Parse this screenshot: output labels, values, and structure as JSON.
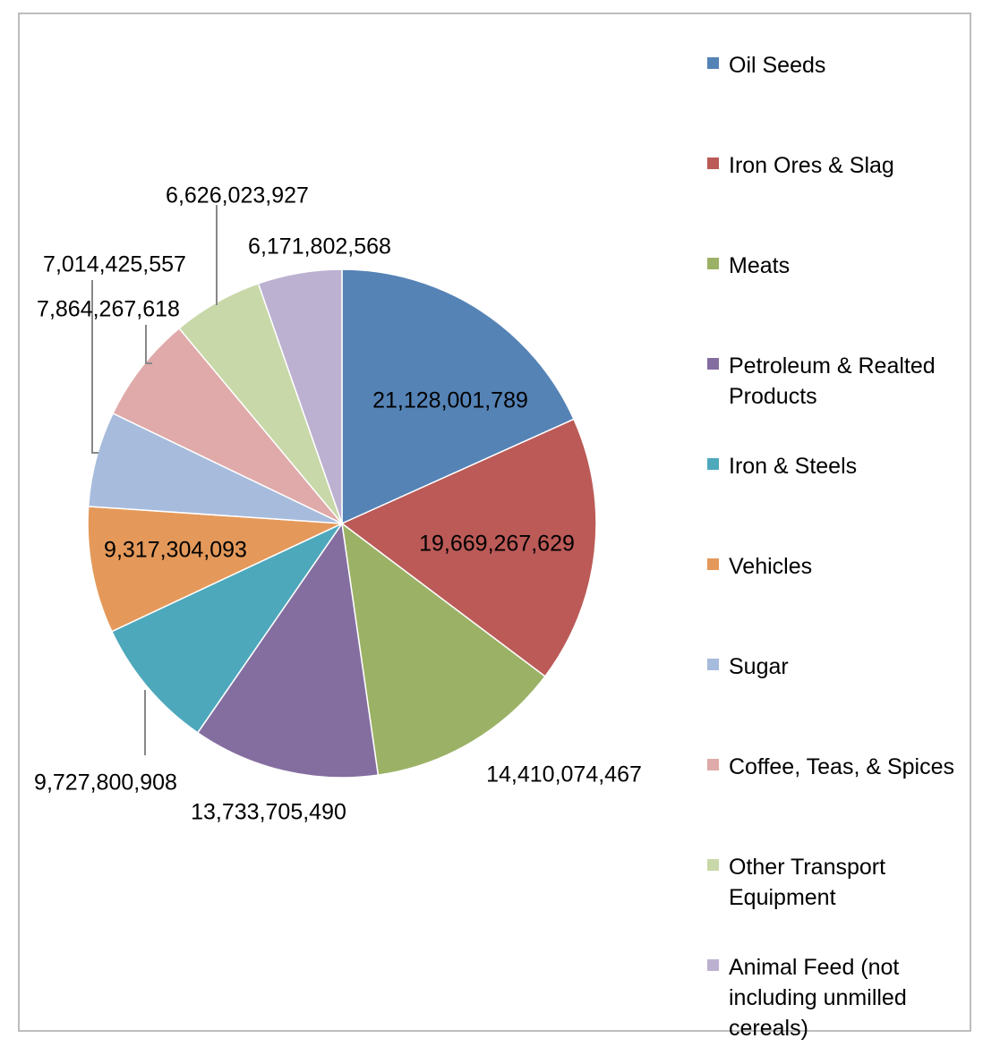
{
  "chart_data": {
    "type": "pie",
    "categories": [
      "Oil Seeds",
      "Iron Ores & Slag",
      "Meats",
      "Petroleum & Realted Products",
      "Iron & Steels",
      "Vehicles",
      "Sugar",
      "Coffee, Teas, & Spices",
      "Other Transport Equipment",
      "Animal Feed (not including unmilled cereals)"
    ],
    "values": [
      21128001789,
      19669267629,
      14410074467,
      13733705490,
      9727800908,
      9317304093,
      7014425557,
      7864267618,
      6626023927,
      6171802568
    ],
    "data_labels": [
      "21,128,001,789",
      "19,669,267,629",
      "14,410,074,467",
      "13,733,705,490",
      "9,727,800,908",
      "9,317,304,093",
      "7,014,425,557",
      "7,864,267,618",
      "6,626,023,927",
      "6,171,802,568"
    ],
    "colors": [
      "#5583b6",
      "#bb5a57",
      "#9bb266",
      "#846ea0",
      "#4ea8bc",
      "#e4995a",
      "#a7bbdc",
      "#dfaaa9",
      "#c8d8a9",
      "#bdb1d1"
    ],
    "legend_position": "right",
    "start_angle": "top, clockwise"
  }
}
